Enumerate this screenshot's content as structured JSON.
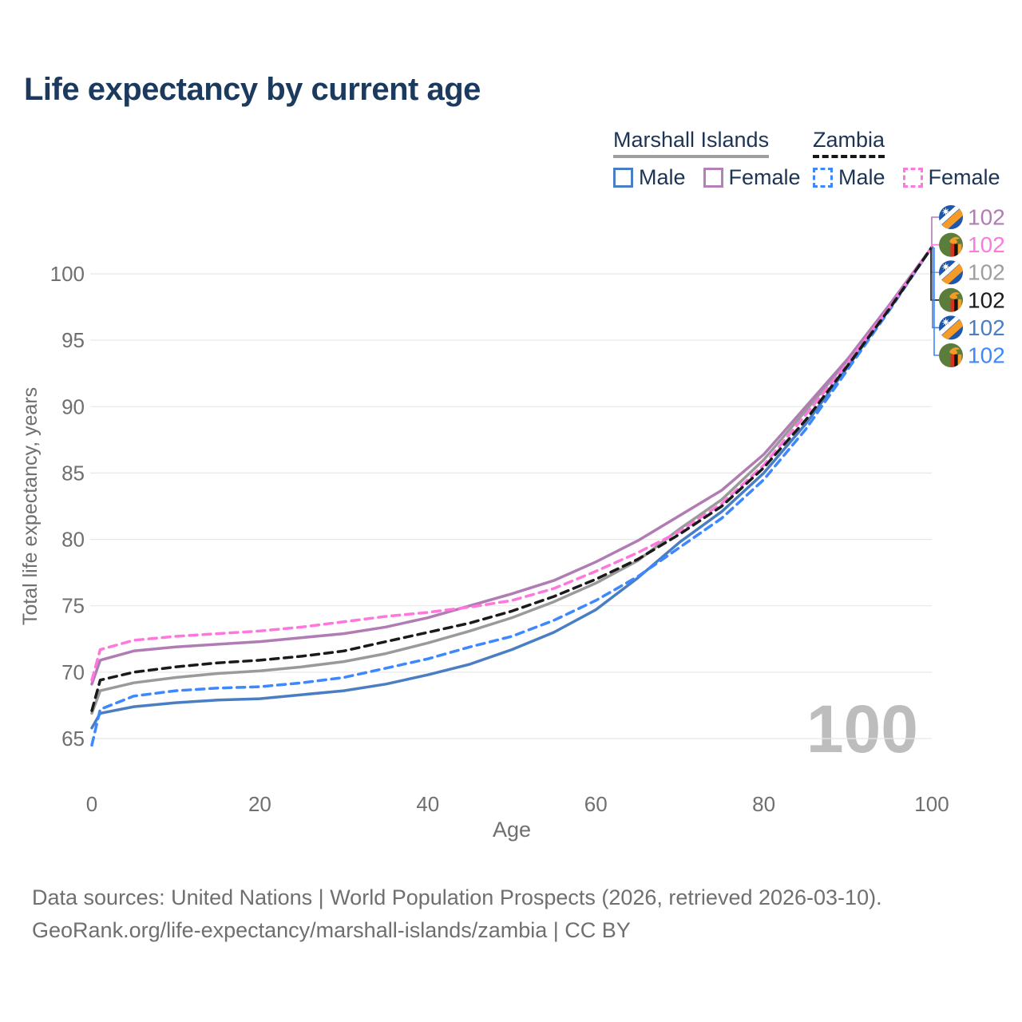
{
  "title": "Life expectancy by current age",
  "legend": {
    "groups": [
      {
        "label": "Marshall Islands",
        "underline": "solid",
        "items": [
          {
            "label": "Male",
            "color": "#4a7ec2",
            "dashed": false
          },
          {
            "label": "Female",
            "color": "#b77fb9",
            "dashed": false
          }
        ]
      },
      {
        "label": "Zambia",
        "underline": "dashed",
        "items": [
          {
            "label": "Male",
            "color": "#3d87ff",
            "dashed": true
          },
          {
            "label": "Female",
            "color": "#fb7ae0",
            "dashed": true
          }
        ]
      }
    ]
  },
  "chart_data": {
    "type": "line",
    "title": "Life expectancy by current age",
    "xlabel": "Age",
    "ylabel": "Total life expectancy, years",
    "xlim": [
      0,
      100
    ],
    "ylim": [
      63,
      103
    ],
    "xticks": [
      0,
      20,
      40,
      60,
      80,
      100
    ],
    "yticks": [
      65,
      70,
      75,
      80,
      85,
      90,
      95,
      100
    ],
    "grid": "horizontal",
    "legend_position": "top-right",
    "age_watermark": "100",
    "ages": [
      0,
      1,
      5,
      10,
      15,
      20,
      25,
      30,
      35,
      40,
      45,
      50,
      55,
      60,
      65,
      70,
      75,
      80,
      85,
      90,
      95,
      100
    ],
    "series": [
      {
        "name": "Marshall Islands Male",
        "country": "Marshall Islands",
        "sex": "Male",
        "color": "#4a7ec2",
        "dashed": false,
        "values": [
          65.8,
          66.9,
          67.4,
          67.7,
          67.9,
          68.0,
          68.3,
          68.6,
          69.1,
          69.8,
          70.6,
          71.7,
          73.0,
          74.7,
          77.1,
          79.8,
          82.1,
          85.0,
          88.7,
          93.0,
          97.4,
          102
        ]
      },
      {
        "name": "Marshall Islands Total",
        "country": "Marshall Islands",
        "sex": "Both",
        "color": "#9a9a9a",
        "dashed": false,
        "values": [
          66.9,
          68.6,
          69.2,
          69.6,
          69.9,
          70.1,
          70.4,
          70.8,
          71.4,
          72.2,
          73.1,
          74.1,
          75.3,
          76.7,
          78.4,
          80.8,
          83.0,
          86.0,
          89.7,
          93.5,
          97.6,
          102
        ]
      },
      {
        "name": "Marshall Islands Female",
        "country": "Marshall Islands",
        "sex": "Female",
        "color": "#b07cb3",
        "dashed": false,
        "values": [
          69.1,
          70.9,
          71.6,
          71.9,
          72.1,
          72.3,
          72.6,
          72.9,
          73.4,
          74.1,
          75.0,
          75.9,
          76.9,
          78.3,
          79.9,
          81.8,
          83.7,
          86.4,
          90.0,
          93.6,
          97.7,
          102
        ]
      },
      {
        "name": "Zambia Male",
        "country": "Zambia",
        "sex": "Male",
        "color": "#3d87ff",
        "dashed": true,
        "values": [
          64.5,
          67.2,
          68.2,
          68.6,
          68.8,
          68.9,
          69.2,
          69.6,
          70.3,
          71.0,
          71.9,
          72.7,
          73.9,
          75.4,
          77.2,
          79.4,
          81.6,
          84.5,
          88.3,
          92.8,
          97.3,
          102
        ]
      },
      {
        "name": "Zambia Female",
        "country": "Zambia",
        "sex": "Female",
        "color": "#ff77dd",
        "dashed": true,
        "values": [
          69.4,
          71.7,
          72.4,
          72.7,
          72.9,
          73.1,
          73.4,
          73.8,
          74.2,
          74.5,
          74.9,
          75.4,
          76.3,
          77.6,
          79.0,
          80.6,
          82.7,
          85.6,
          89.4,
          93.3,
          97.5,
          102
        ]
      },
      {
        "name": "Zambia Total",
        "country": "Zambia",
        "sex": "Both",
        "color": "#1a1a1a",
        "dashed": true,
        "values": [
          67.1,
          69.4,
          70.0,
          70.4,
          70.7,
          70.9,
          71.2,
          71.6,
          72.3,
          73.0,
          73.7,
          74.6,
          75.7,
          77.0,
          78.5,
          80.4,
          82.5,
          85.4,
          89.0,
          93.1,
          97.4,
          102
        ]
      }
    ],
    "end_labels": [
      {
        "value": "102",
        "color": "#b07cb3",
        "flag": "marshall-islands",
        "series": "Marshall Islands Female"
      },
      {
        "value": "102",
        "color": "#fb7ae0",
        "flag": "zambia",
        "series": "Zambia Female"
      },
      {
        "value": "102",
        "color": "#9e9e9e",
        "flag": "marshall-islands",
        "series": "Marshall Islands Total"
      },
      {
        "value": "102",
        "color": "#1a1a1a",
        "flag": "zambia",
        "series": "Zambia Total"
      },
      {
        "value": "102",
        "color": "#4a7ec2",
        "flag": "marshall-islands",
        "series": "Marshall Islands Male"
      },
      {
        "value": "102",
        "color": "#3d87ff",
        "flag": "zambia",
        "series": "Zambia Male"
      }
    ]
  },
  "footer": {
    "line1": "Data sources: United Nations | World Population Prospects (2026, retrieved 2026-03-10).",
    "line2": "GeoRank.org/life-expectancy/marshall-islands/zambia | CC BY"
  }
}
